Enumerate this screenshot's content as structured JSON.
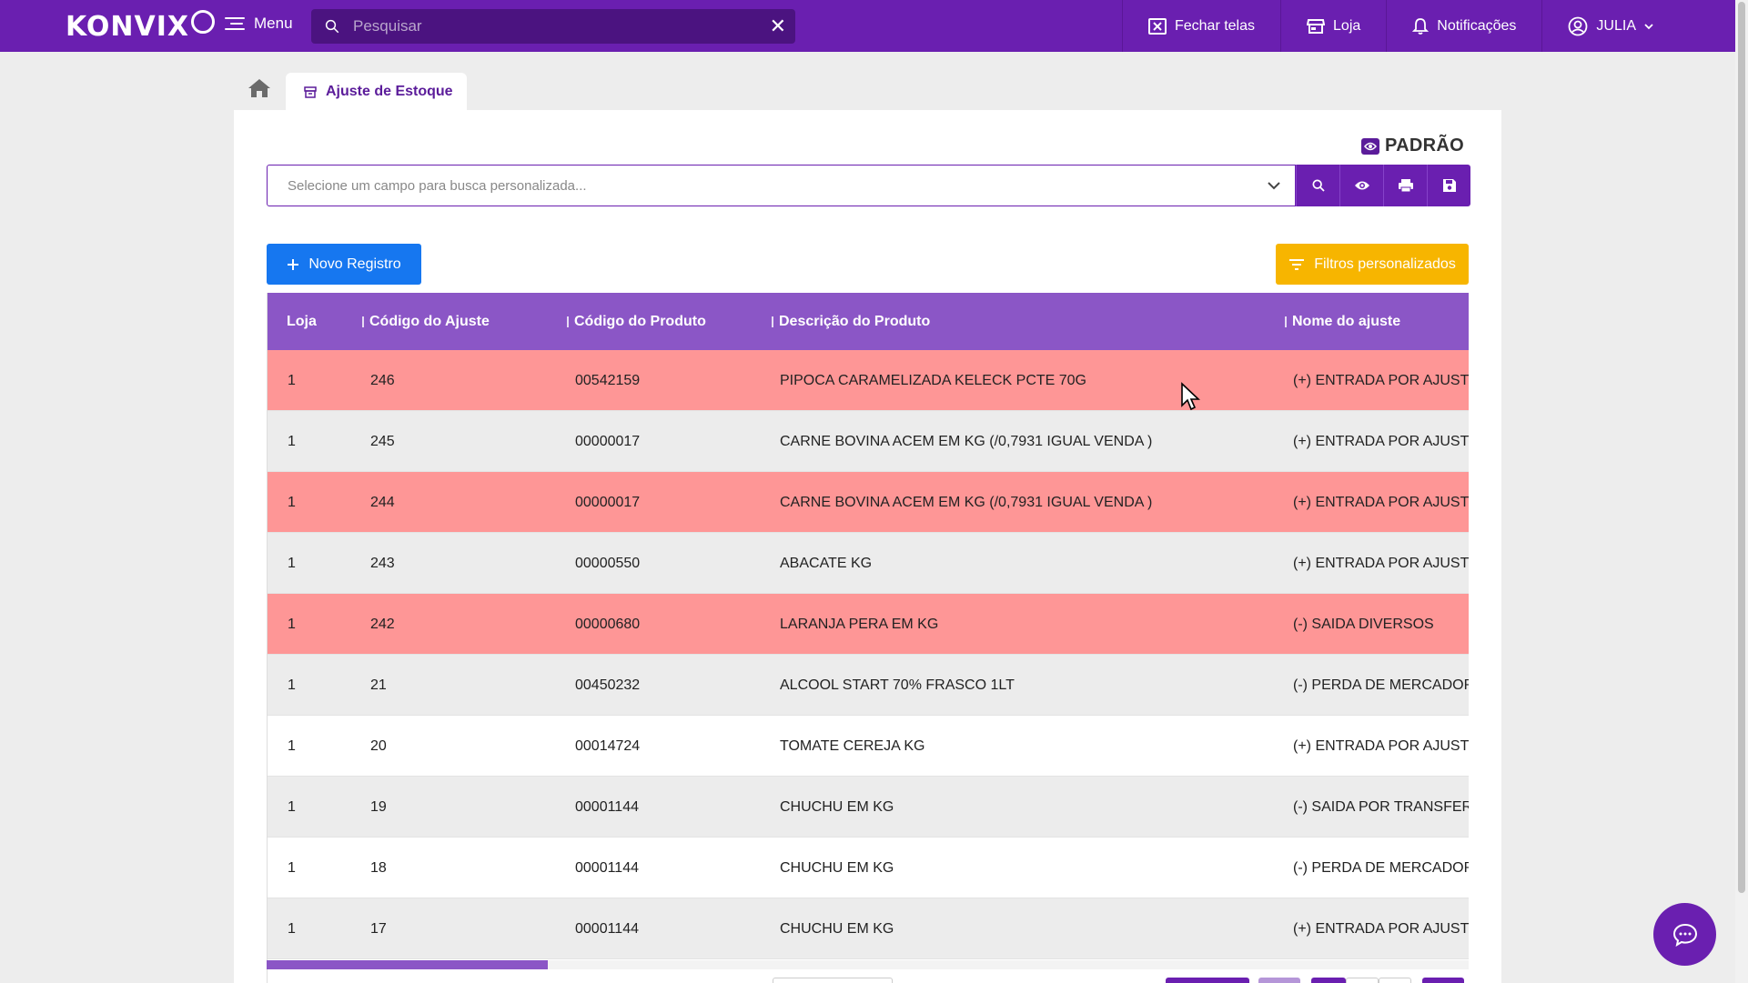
{
  "app": {
    "logo_text": "KONVIX",
    "menu_label": "Menu",
    "search_placeholder": "Pesquisar",
    "actions": [
      {
        "label": "Fechar telas",
        "icon": "close-window-icon"
      },
      {
        "label": "Loja",
        "icon": "store-icon"
      },
      {
        "label": "Notificações",
        "icon": "bell-icon"
      }
    ],
    "user": {
      "name": "JULIA",
      "icon": "user-circle-icon"
    }
  },
  "tabs": {
    "home_icon": "home-icon",
    "active_label": "Ajuste de Estoque"
  },
  "view": {
    "mode_label": "PADRÃO"
  },
  "custom_search": {
    "placeholder": "Selecione um campo para busca personalizada..."
  },
  "buttons": {
    "new_record": "Novo Registro",
    "custom_filters": "Filtros personalizados"
  },
  "table": {
    "columns": [
      "Loja",
      "Código do Ajuste",
      "Código do Produto",
      "Descrição do Produto",
      "Nome do ajuste"
    ],
    "rows": [
      {
        "loja": "1",
        "codigo_ajuste": "246",
        "codigo_produto": "00542159",
        "descricao": "PIPOCA CARAMELIZADA KELECK PCTE 70G",
        "nome_ajuste": "(+) ENTRADA POR AJUSTE",
        "style": "red"
      },
      {
        "loja": "1",
        "codigo_ajuste": "245",
        "codigo_produto": "00000017",
        "descricao": "CARNE BOVINA ACEM EM KG (/0,7931 IGUAL VENDA )",
        "nome_ajuste": "(+) ENTRADA POR AJUSTE",
        "style": "grey"
      },
      {
        "loja": "1",
        "codigo_ajuste": "244",
        "codigo_produto": "00000017",
        "descricao": "CARNE BOVINA ACEM EM KG (/0,7931 IGUAL VENDA )",
        "nome_ajuste": "(+) ENTRADA POR AJUSTE",
        "style": "red"
      },
      {
        "loja": "1",
        "codigo_ajuste": "243",
        "codigo_produto": "00000550",
        "descricao": "ABACATE KG",
        "nome_ajuste": "(+) ENTRADA POR AJUSTE",
        "style": "grey"
      },
      {
        "loja": "1",
        "codigo_ajuste": "242",
        "codigo_produto": "00000680",
        "descricao": "LARANJA PERA EM KG",
        "nome_ajuste": "(-) SAIDA DIVERSOS",
        "style": "red"
      },
      {
        "loja": "1",
        "codigo_ajuste": "21",
        "codigo_produto": "00450232",
        "descricao": "ALCOOL START 70% FRASCO 1LT",
        "nome_ajuste": "(-) PERDA DE MERCADORIA",
        "style": "grey"
      },
      {
        "loja": "1",
        "codigo_ajuste": "20",
        "codigo_produto": "00014724",
        "descricao": "TOMATE CEREJA KG",
        "nome_ajuste": "(+) ENTRADA POR AJUSTE",
        "style": "white"
      },
      {
        "loja": "1",
        "codigo_ajuste": "19",
        "codigo_produto": "00001144",
        "descricao": "CHUCHU EM KG",
        "nome_ajuste": "(-) SAIDA POR TRANSFERE",
        "style": "grey"
      },
      {
        "loja": "1",
        "codigo_ajuste": "18",
        "codigo_produto": "00001144",
        "descricao": "CHUCHU EM KG",
        "nome_ajuste": "(-) PERDA DE MERCADORIA",
        "style": "white"
      },
      {
        "loja": "1",
        "codigo_ajuste": "17",
        "codigo_produto": "00001144",
        "descricao": "CHUCHU EM KG",
        "nome_ajuste": "(+) ENTRADA POR AJUSTE",
        "style": "grey"
      }
    ]
  },
  "colors": {
    "brand": "#6a1fb0",
    "header": "#8b56c6",
    "row_highlight": "#fe9696",
    "new_button": "#1677f0",
    "filter_button": "#f7b500"
  }
}
